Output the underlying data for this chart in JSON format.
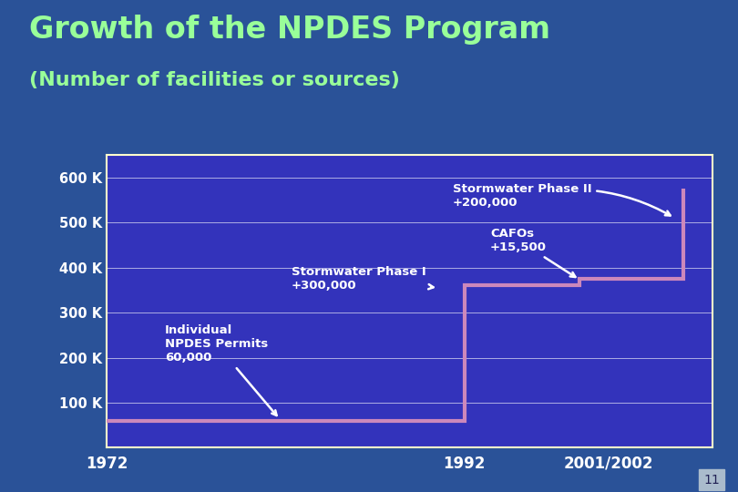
{
  "title_line1": "Growth of the NPDES Program",
  "title_line2": "(Number of facilities or sources)",
  "title_color": "#99ff99",
  "bg_color": "#2a5298",
  "plot_bg_color": "#3333bb",
  "border_color": "#ffffcc",
  "grid_color": "#ffffff",
  "line_color": "#cc88bb",
  "text_color": "#ffffff",
  "ytick_labels": [
    "100 K",
    "200 K",
    "300 K",
    "400 K",
    "500 K",
    "600 K"
  ],
  "ytick_values": [
    100000,
    200000,
    300000,
    400000,
    500000,
    600000
  ],
  "xtick_labels": [
    "1972",
    "1992",
    "2001/2002"
  ],
  "step_x": [
    0.0,
    0.62,
    0.62,
    0.82,
    0.82,
    1.0,
    1.0
  ],
  "step_y": [
    60000,
    60000,
    360000,
    360000,
    375500,
    375500,
    575500
  ],
  "ylim": [
    0,
    650000
  ],
  "xlim": [
    0.0,
    1.05
  ],
  "slide_number": "11"
}
